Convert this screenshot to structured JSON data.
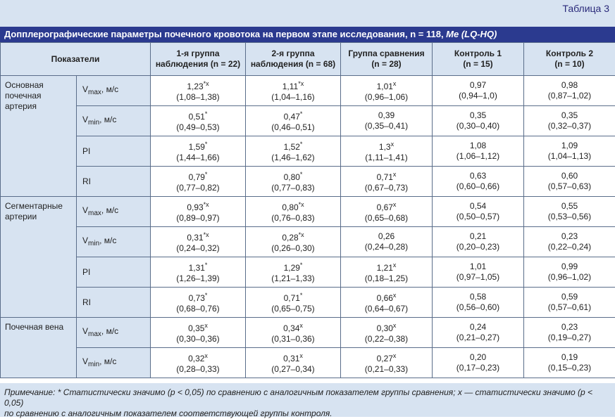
{
  "table_number": "Таблица 3",
  "title": "Допплерографические параметры почечного кровотока на первом этапе исследования, n = 118, ",
  "title_suffix": "Me (LQ-HQ)",
  "header": {
    "indicators": "Показатели",
    "g1_line1": "1-я группа",
    "g1_line2": "наблюдения (n = 22)",
    "g2_line1": "2-я группа",
    "g2_line2": "наблюдения (n = 68)",
    "g3_line1": "Группа сравнения",
    "g3_line2": "(n = 28)",
    "c1_line1": "Контроль 1",
    "c1_line2": "(n = 15)",
    "c2_line1": "Контроль 2",
    "c2_line2": "(n = 10)"
  },
  "groups": {
    "artery_line1": "Основная",
    "artery_line2": "почечная",
    "artery_line3": "артерия",
    "segm_line1": "Сегментарные",
    "segm_line2": "артерии",
    "vein": "Почечная вена"
  },
  "params": {
    "v": "V",
    "max": "max",
    "min": "min",
    "unit": ", м/с",
    "pi": "PI",
    "ri": "RI"
  },
  "rows": [
    [
      {
        "v": "1,23",
        "s": "*x",
        "r": "(1,08–1,38)"
      },
      {
        "v": "1,11",
        "s": "*x",
        "r": "(1,04–1,16)"
      },
      {
        "v": "1,01",
        "s": "x",
        "r": "(0,96–1,06)"
      },
      {
        "v": "0,97",
        "s": "",
        "r": "(0,94–1,0)"
      },
      {
        "v": "0,98",
        "s": "",
        "r": "(0,87–1,02)"
      }
    ],
    [
      {
        "v": "0,51",
        "s": "*",
        "r": "(0,49–0,53)"
      },
      {
        "v": "0,47",
        "s": "*",
        "r": "(0,46–0,51)"
      },
      {
        "v": "0,39",
        "s": "",
        "r": "(0,35–0,41)"
      },
      {
        "v": "0,35",
        "s": "",
        "r": "(0,30–0,40)"
      },
      {
        "v": "0,35",
        "s": "",
        "r": "(0,32–0,37)"
      }
    ],
    [
      {
        "v": "1,59",
        "s": "*",
        "r": "(1,44–1,66)"
      },
      {
        "v": "1,52",
        "s": "*",
        "r": "(1,46–1,62)"
      },
      {
        "v": "1,3",
        "s": "x",
        "r": "(1,11–1,41)"
      },
      {
        "v": "1,08",
        "s": "",
        "r": "(1,06–1,12)"
      },
      {
        "v": "1,09",
        "s": "",
        "r": "(1,04–1,13)"
      }
    ],
    [
      {
        "v": "0,79",
        "s": "*",
        "r": "(0,77–0,82)"
      },
      {
        "v": "0,80",
        "s": "*",
        "r": "(0,77–0,83)"
      },
      {
        "v": "0,71",
        "s": "x",
        "r": "(0,67–0,73)"
      },
      {
        "v": "0,63",
        "s": "",
        "r": "(0,60–0,66)"
      },
      {
        "v": "0,60",
        "s": "",
        "r": "(0,57–0,63)"
      }
    ],
    [
      {
        "v": "0,93",
        "s": "*x",
        "r": "(0,89–0,97)"
      },
      {
        "v": "0,80",
        "s": "*x",
        "r": "(0,76–0,83)"
      },
      {
        "v": "0,67",
        "s": "x",
        "r": "(0,65–0,68)"
      },
      {
        "v": "0,54",
        "s": "",
        "r": "(0,50–0,57)"
      },
      {
        "v": "0,55",
        "s": "",
        "r": "(0,53–0,56)"
      }
    ],
    [
      {
        "v": "0,31",
        "s": "*x",
        "r": "(0,24–0,32)"
      },
      {
        "v": "0,28",
        "s": "*x",
        "r": "(0,26–0,30)"
      },
      {
        "v": "0,26",
        "s": "",
        "r": "(0,24–0,28)"
      },
      {
        "v": "0,21",
        "s": "",
        "r": "(0,20–0,23)"
      },
      {
        "v": "0,23",
        "s": "",
        "r": "(0,22–0,24)"
      }
    ],
    [
      {
        "v": "1,31",
        "s": "*",
        "r": "(1,26–1,39)"
      },
      {
        "v": "1,29",
        "s": "*",
        "r": "(1,21–1,33)"
      },
      {
        "v": "1,21",
        "s": "x",
        "r": "(0,18–1,25)"
      },
      {
        "v": "1,01",
        "s": "",
        "r": "(0,97–1,05)"
      },
      {
        "v": "0,99",
        "s": "",
        "r": "(0,96–1,02)"
      }
    ],
    [
      {
        "v": "0,73",
        "s": "*",
        "r": "(0,68–0,76)"
      },
      {
        "v": "0,71",
        "s": "*",
        "r": "(0,65–0,75)"
      },
      {
        "v": "0,66",
        "s": "x",
        "r": "(0,64–0,67)"
      },
      {
        "v": "0,58",
        "s": "",
        "r": "(0,56–0,60)"
      },
      {
        "v": "0,59",
        "s": "",
        "r": "(0,57–0,61)"
      }
    ],
    [
      {
        "v": "0,35",
        "s": "x",
        "r": "(0,30–0,36)"
      },
      {
        "v": "0,34",
        "s": "x",
        "r": "(0,31–0,36)"
      },
      {
        "v": "0,30",
        "s": "x",
        "r": "(0,22–0,38)"
      },
      {
        "v": "0,24",
        "s": "",
        "r": "(0,21–0,27)"
      },
      {
        "v": "0,23",
        "s": "",
        "r": "(0,19–0,27)"
      }
    ],
    [
      {
        "v": "0,32",
        "s": "x",
        "r": "(0,28–0,33)"
      },
      {
        "v": "0,31",
        "s": "x",
        "r": "(0,27–0,34)"
      },
      {
        "v": "0,27",
        "s": "x",
        "r": "(0,21–0,33)"
      },
      {
        "v": "0,20",
        "s": "",
        "r": "(0,17–0,23)"
      },
      {
        "v": "0,19",
        "s": "",
        "r": "(0,15–0,23)"
      }
    ]
  ],
  "note_line1": "Примечание: * Статистически значимо (p < 0,05) по сравнению с аналогичным показателем группы сравнения; x — статистически значимо (p < 0,05)",
  "note_line2": "по сравнению с аналогичным показателем соответствующей группы контроля.",
  "colors": {
    "title_bg": "#2b3a8f",
    "panel_bg": "#d7e3f1",
    "border": "#5a6d8a"
  }
}
